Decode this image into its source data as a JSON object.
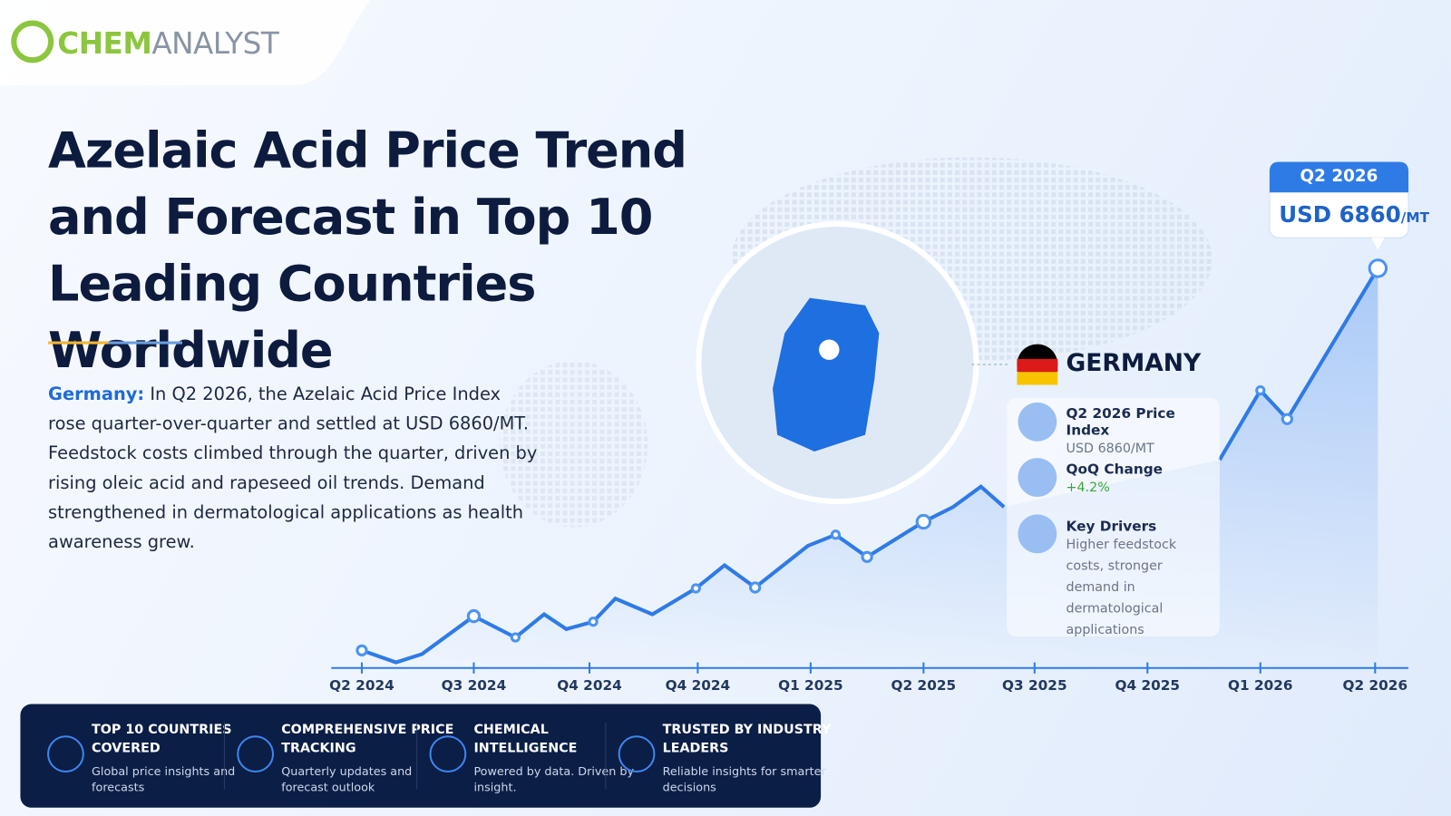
{
  "logo": {
    "brand_a": "CHEM",
    "brand_b": "ANALYST"
  },
  "title": "Azelaic Acid Price Trend and Forecast in Top 10 Leading Countries Worldwide",
  "summary": {
    "lead": "Germany:",
    "text": "In Q2 2026, the Azelaic Acid Price Index rose quarter-over-quarter and settled at USD 6860/MT. Feedstock costs climbed through the quarter, driven by rising oleic acid and rapeseed oil trends. Demand strengthened in dermatological applications as health awareness grew."
  },
  "callout": {
    "period": "Q2 2026",
    "price": "USD 6860",
    "unit": "/MT"
  },
  "country": {
    "name": "GERMANY",
    "stats": [
      {
        "label": "Q2 2026 Price Index",
        "value": "USD 6860/MT"
      },
      {
        "label": "QoQ Change",
        "value": "+4.2%"
      },
      {
        "label": "Key Drivers",
        "value": "Higher feedstock costs, stronger demand in dermatological applications"
      }
    ]
  },
  "timeline": [
    "Q2 2024",
    "Q3 2024",
    "Q4 2024",
    "Q4 2024",
    "Q1 2025",
    "Q2 2025",
    "Q3 2025",
    "Q4 2025",
    "Q1 2026",
    "Q2 2026"
  ],
  "features": [
    {
      "title": "TOP 10 COUNTRIES COVERED",
      "text": "Global price insights and forecasts"
    },
    {
      "title": "COMPREHENSIVE PRICE TRACKING",
      "text": "Quarterly updates and forecast outlook"
    },
    {
      "title": "CHEMICAL INTELLIGENCE",
      "text": "Powered by data. Driven by insight."
    },
    {
      "title": "TRUSTED BY INDUSTRY LEADERS",
      "text": "Reliable insights for smarter decisions"
    }
  ]
}
